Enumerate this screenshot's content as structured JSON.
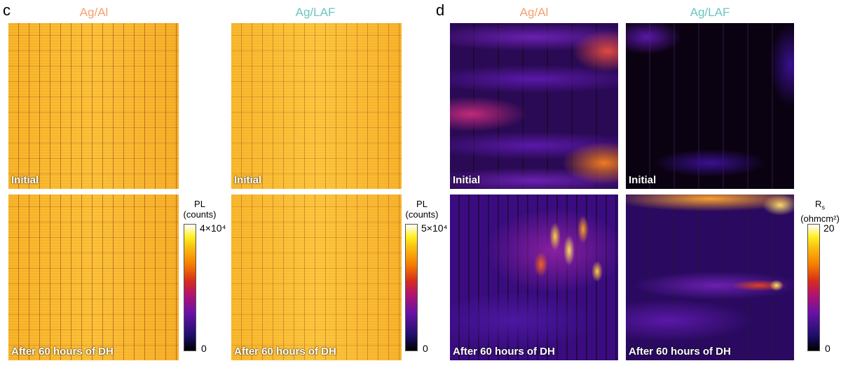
{
  "panels": {
    "c": {
      "letter": "c",
      "columns": [
        "Ag/Al",
        "Ag/LAF"
      ],
      "row_labels": [
        "Initial",
        "After 60 hours of DH"
      ],
      "colorbars": [
        {
          "title": "PL",
          "unit": "(counts)",
          "max": "4×10⁴",
          "min": "0"
        },
        {
          "title": "PL",
          "unit": "(counts)",
          "max": "5×10⁴",
          "min": "0"
        }
      ]
    },
    "d": {
      "letter": "d",
      "columns": [
        "Ag/Al",
        "Ag/LAF"
      ],
      "row_labels": [
        "Initial",
        "After 60 hours of DH"
      ],
      "colorbar": {
        "title": "R",
        "title_sub": "s",
        "unit": "(ohmcm²)",
        "max": "20",
        "min": "0"
      }
    }
  },
  "colors": {
    "agal_title": "#f4a070",
    "aglaf_title": "#6cc4c0",
    "colormap": "inferno-like"
  }
}
